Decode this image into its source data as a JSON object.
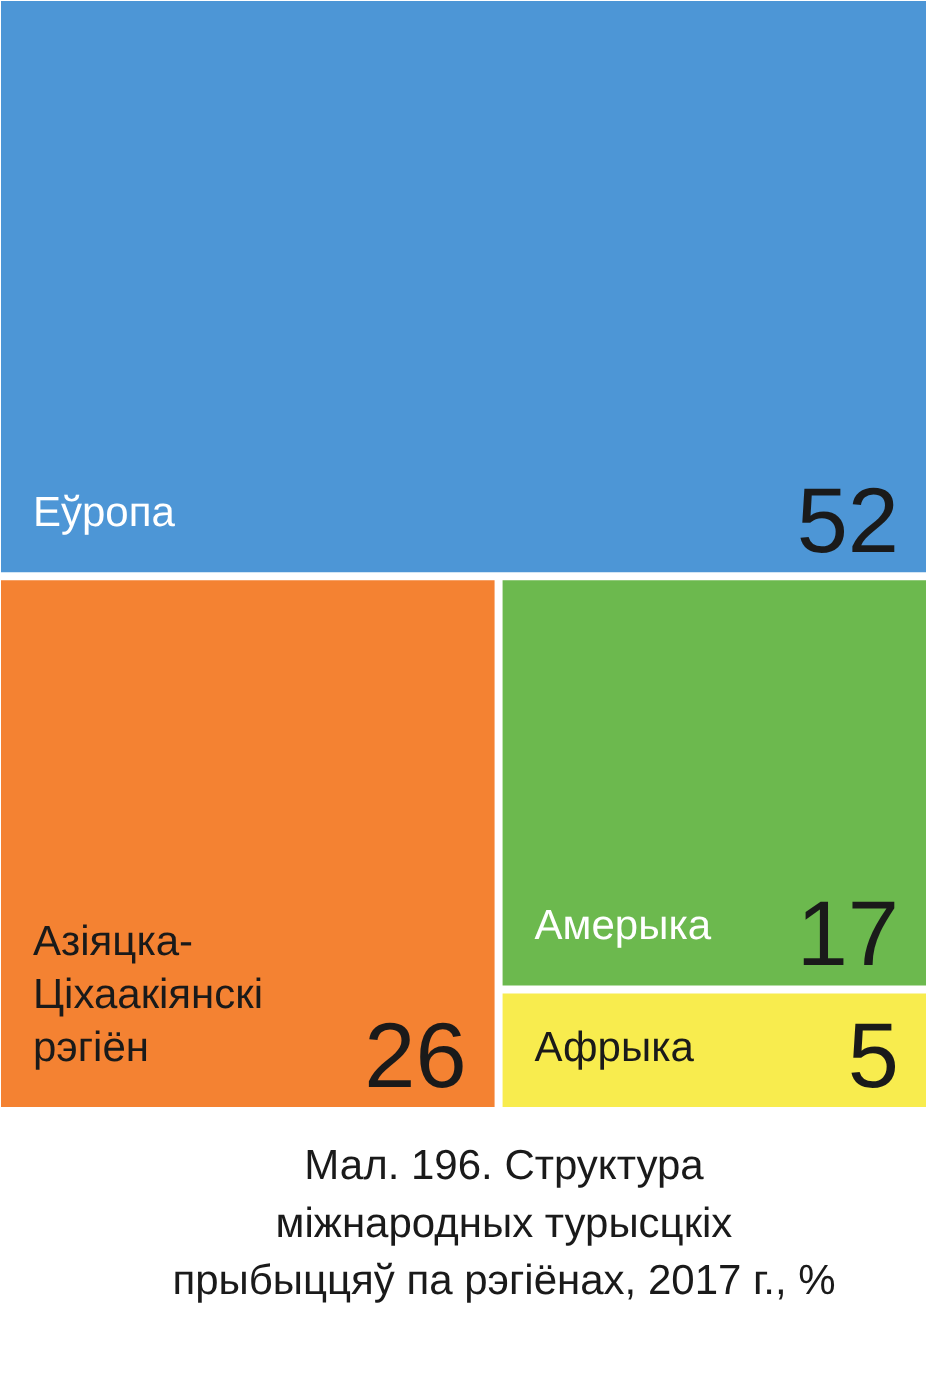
{
  "chart_data": {
    "type": "other",
    "categories": [
      "Еўропа",
      "Азіяцка-\nЦіхаакіянскі\nрэгіён",
      "Амерыка",
      "Афрыка"
    ],
    "values": [
      52,
      26,
      17,
      5
    ],
    "colors": [
      "#4d96d6",
      "#f48232",
      "#6cb94e",
      "#f8ec4e"
    ],
    "data_labels": true,
    "annotations": [
      "Мал. 196. Структура\nміжнародных турысцкіх\nпрыбыццяў па рэгіёнах, 2017 г., %"
    ]
  }
}
